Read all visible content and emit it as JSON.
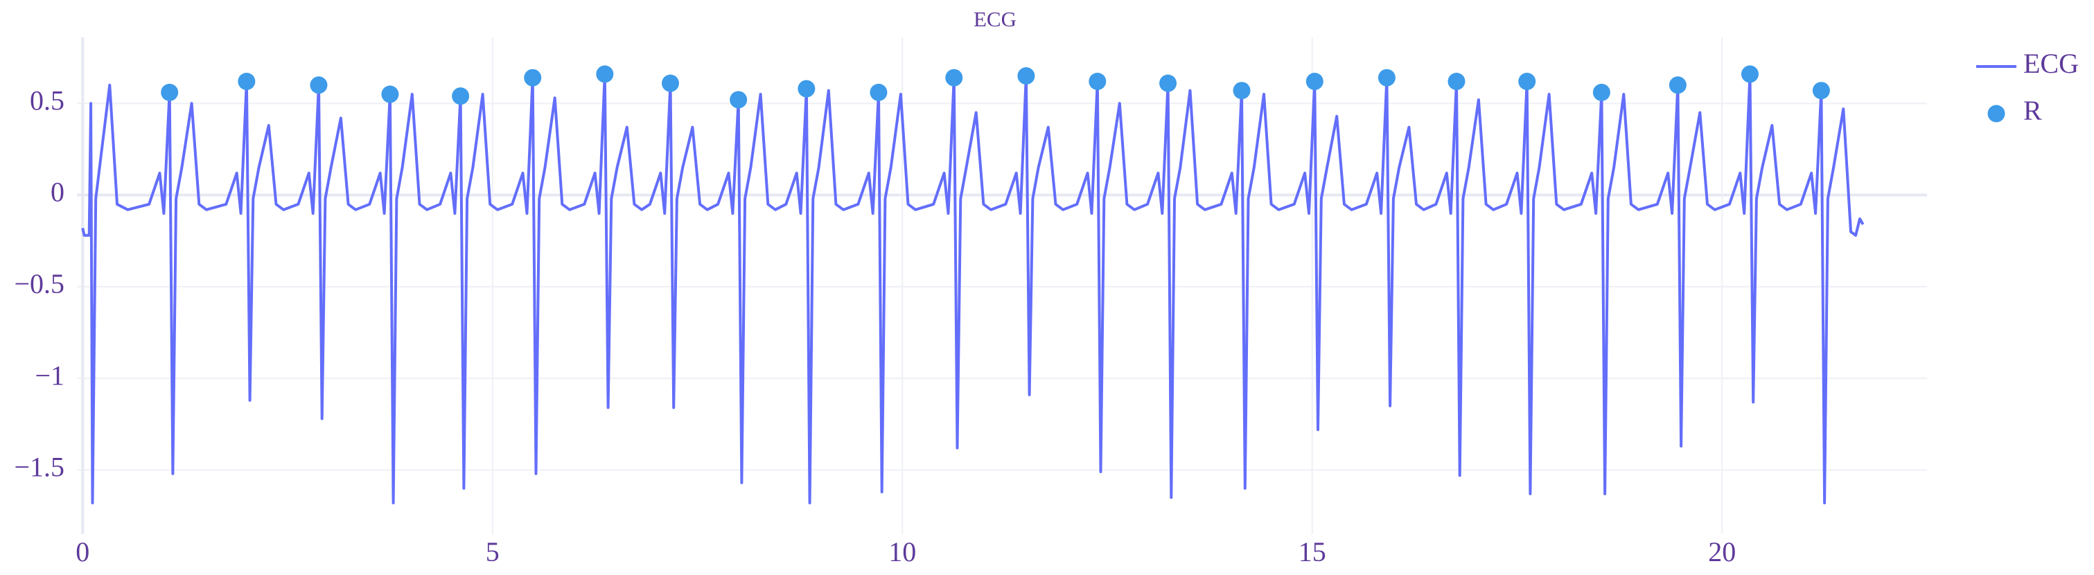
{
  "chart_data": {
    "type": "line",
    "title": "ECG",
    "xlim": [
      -0.07,
      22.5
    ],
    "ylim": [
      -1.85,
      0.86
    ],
    "xticks": [
      0,
      5,
      10,
      15,
      20
    ],
    "yticks": [
      {
        "value": -1.5,
        "label": "−1.5"
      },
      {
        "value": -1,
        "label": "−1"
      },
      {
        "value": -0.5,
        "label": "−0.5"
      },
      0,
      0.5
    ],
    "grid": true,
    "legend": "top-right",
    "series": [
      {
        "name": "ECG",
        "type": "line",
        "color": "#636efa",
        "x": [
          0,
          0.02,
          0.08,
          0.1,
          0.12,
          0.16,
          0.22,
          0.33,
          0.42,
          0.55,
          0.81,
          0.94,
          0.99,
          1.06,
          1.1,
          1.14,
          1.21,
          1.33,
          1.42,
          1.51,
          1.75,
          1.88,
          1.93,
          2,
          2.04,
          2.08,
          2.15,
          2.27,
          2.36,
          2.45,
          2.63,
          2.76,
          2.81,
          2.88,
          2.92,
          2.96,
          3.03,
          3.15,
          3.24,
          3.33,
          3.5,
          3.63,
          3.68,
          3.75,
          3.79,
          3.83,
          3.9,
          4.02,
          4.11,
          4.2,
          4.36,
          4.49,
          4.54,
          4.61,
          4.65,
          4.69,
          4.76,
          4.88,
          4.97,
          5.06,
          5.24,
          5.37,
          5.42,
          5.49,
          5.53,
          5.57,
          5.64,
          5.76,
          5.85,
          5.94,
          6.12,
          6.25,
          6.3,
          6.37,
          6.41,
          6.45,
          6.52,
          6.64,
          6.73,
          6.82,
          6.92,
          7.05,
          7.1,
          7.17,
          7.21,
          7.25,
          7.32,
          7.44,
          7.53,
          7.62,
          7.75,
          7.88,
          7.93,
          8,
          8.04,
          8.08,
          8.15,
          8.27,
          8.36,
          8.45,
          8.58,
          8.71,
          8.76,
          8.83,
          8.87,
          8.91,
          8.98,
          9.1,
          9.19,
          9.28,
          9.46,
          9.59,
          9.64,
          9.71,
          9.75,
          9.79,
          9.86,
          9.98,
          10.07,
          10.16,
          10.38,
          10.51,
          10.56,
          10.63,
          10.67,
          10.71,
          10.78,
          10.9,
          10.99,
          11.08,
          11.26,
          11.39,
          11.44,
          11.51,
          11.55,
          11.59,
          11.66,
          11.78,
          11.87,
          11.96,
          12.13,
          12.26,
          12.31,
          12.38,
          12.42,
          12.46,
          12.53,
          12.65,
          12.74,
          12.83,
          12.99,
          13.12,
          13.17,
          13.24,
          13.28,
          13.32,
          13.39,
          13.51,
          13.6,
          13.69,
          13.89,
          14.02,
          14.07,
          14.14,
          14.18,
          14.22,
          14.29,
          14.41,
          14.5,
          14.59,
          14.78,
          14.91,
          14.96,
          15.03,
          15.07,
          15.11,
          15.18,
          15.3,
          15.39,
          15.48,
          15.66,
          15.79,
          15.84,
          15.91,
          15.95,
          15.99,
          16.06,
          16.18,
          16.27,
          16.36,
          16.51,
          16.64,
          16.69,
          16.76,
          16.8,
          16.84,
          16.91,
          17.03,
          17.12,
          17.21,
          17.37,
          17.5,
          17.55,
          17.62,
          17.66,
          17.7,
          17.77,
          17.89,
          17.98,
          18.07,
          18.28,
          18.41,
          18.46,
          18.53,
          18.57,
          18.61,
          18.68,
          18.8,
          18.89,
          18.98,
          19.21,
          19.34,
          19.39,
          19.46,
          19.5,
          19.54,
          19.61,
          19.73,
          19.82,
          19.91,
          20.09,
          20.22,
          20.27,
          20.34,
          20.38,
          20.42,
          20.49,
          20.61,
          20.7,
          20.79,
          20.96,
          21.09,
          21.14,
          21.21,
          21.25,
          21.29,
          21.36,
          21.48,
          21.57,
          21.63,
          21.68,
          21.72
        ],
        "values": [
          -0.18,
          -0.22,
          -0.22,
          0.5,
          -1.68,
          -0.02,
          0.2,
          0.6,
          -0.05,
          -0.08,
          -0.05,
          0.12,
          -0.1,
          0.56,
          -1.52,
          -0.02,
          0.15,
          0.5,
          -0.05,
          -0.08,
          -0.05,
          0.12,
          -0.1,
          0.62,
          -1.12,
          -0.02,
          0.15,
          0.38,
          -0.05,
          -0.08,
          -0.05,
          0.12,
          -0.1,
          0.6,
          -1.22,
          -0.02,
          0.15,
          0.42,
          -0.05,
          -0.08,
          -0.05,
          0.12,
          -0.1,
          0.55,
          -1.68,
          -0.02,
          0.15,
          0.55,
          -0.05,
          -0.08,
          -0.05,
          0.12,
          -0.1,
          0.54,
          -1.6,
          -0.02,
          0.15,
          0.55,
          -0.05,
          -0.08,
          -0.05,
          0.12,
          -0.1,
          0.64,
          -1.52,
          -0.02,
          0.15,
          0.53,
          -0.05,
          -0.08,
          -0.05,
          0.12,
          -0.1,
          0.66,
          -1.16,
          -0.02,
          0.15,
          0.37,
          -0.05,
          -0.08,
          -0.05,
          0.12,
          -0.1,
          0.61,
          -1.16,
          -0.02,
          0.15,
          0.37,
          -0.05,
          -0.08,
          -0.05,
          0.12,
          -0.1,
          0.52,
          -1.57,
          -0.02,
          0.15,
          0.55,
          -0.05,
          -0.08,
          -0.05,
          0.12,
          -0.1,
          0.58,
          -1.68,
          -0.02,
          0.15,
          0.57,
          -0.05,
          -0.08,
          -0.05,
          0.12,
          -0.1,
          0.56,
          -1.62,
          -0.02,
          0.15,
          0.55,
          -0.05,
          -0.08,
          -0.05,
          0.12,
          -0.1,
          0.64,
          -1.38,
          -0.02,
          0.15,
          0.45,
          -0.05,
          -0.08,
          -0.05,
          0.12,
          -0.1,
          0.65,
          -1.09,
          -0.02,
          0.15,
          0.37,
          -0.05,
          -0.08,
          -0.05,
          0.12,
          -0.1,
          0.62,
          -1.51,
          -0.02,
          0.15,
          0.5,
          -0.05,
          -0.08,
          -0.05,
          0.12,
          -0.1,
          0.61,
          -1.65,
          -0.02,
          0.15,
          0.57,
          -0.05,
          -0.08,
          -0.05,
          0.12,
          -0.1,
          0.57,
          -1.6,
          -0.02,
          0.15,
          0.55,
          -0.05,
          -0.08,
          -0.05,
          0.12,
          -0.1,
          0.62,
          -1.28,
          -0.02,
          0.15,
          0.43,
          -0.05,
          -0.08,
          -0.05,
          0.12,
          -0.1,
          0.64,
          -1.15,
          -0.02,
          0.15,
          0.37,
          -0.05,
          -0.08,
          -0.05,
          0.12,
          -0.1,
          0.62,
          -1.53,
          -0.02,
          0.15,
          0.52,
          -0.05,
          -0.08,
          -0.05,
          0.12,
          -0.1,
          0.62,
          -1.63,
          -0.02,
          0.15,
          0.55,
          -0.05,
          -0.08,
          -0.05,
          0.12,
          -0.1,
          0.56,
          -1.63,
          -0.02,
          0.15,
          0.55,
          -0.05,
          -0.08,
          -0.05,
          0.12,
          -0.1,
          0.6,
          -1.37,
          -0.02,
          0.15,
          0.45,
          -0.05,
          -0.08,
          -0.05,
          0.12,
          -0.1,
          0.66,
          -1.13,
          -0.02,
          0.15,
          0.38,
          -0.05,
          -0.08,
          -0.05,
          0.12,
          -0.1,
          0.57,
          -1.68,
          -0.02,
          0.15,
          0.47,
          -0.2,
          -0.22,
          -0.13,
          -0.16
        ]
      },
      {
        "name": "R",
        "type": "scatter",
        "color": "#3d9be9",
        "x": [
          1.06,
          2,
          2.88,
          3.75,
          4.61,
          5.49,
          6.37,
          7.17,
          8,
          8.83,
          9.71,
          10.63,
          11.51,
          12.38,
          13.24,
          14.14,
          15.03,
          15.91,
          16.76,
          17.62,
          18.53,
          19.46,
          20.34,
          21.21
        ],
        "values": [
          0.56,
          0.62,
          0.6,
          0.55,
          0.54,
          0.64,
          0.66,
          0.61,
          0.52,
          0.58,
          0.56,
          0.64,
          0.65,
          0.62,
          0.61,
          0.57,
          0.62,
          0.64,
          0.62,
          0.62,
          0.56,
          0.6,
          0.66,
          0.57
        ]
      }
    ]
  }
}
